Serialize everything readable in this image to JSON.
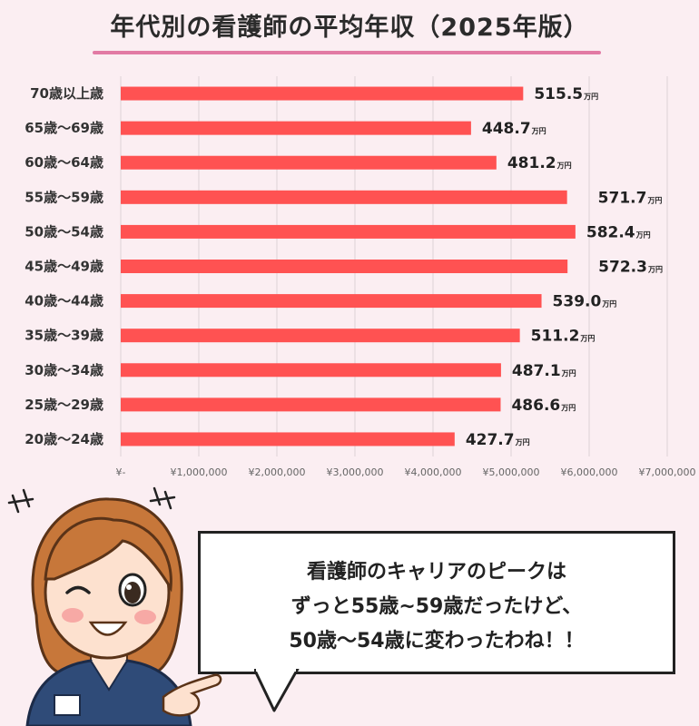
{
  "title": "年代別の看護師の平均年収（2025年版）",
  "chart_data": {
    "type": "bar",
    "orientation": "horizontal",
    "title": "年代別の看護師の平均年収（2025年版）",
    "categories": [
      "70歳以上歳",
      "65歳〜69歳",
      "60歳〜64歳",
      "55歳〜59歳",
      "50歳〜54歳",
      "45歳〜49歳",
      "40歳〜44歳",
      "35歳〜39歳",
      "30歳〜34歳",
      "25歳〜29歳",
      "20歳〜24歳"
    ],
    "values": [
      5155000,
      4487000,
      4812000,
      5717000,
      5824000,
      5723000,
      5390000,
      5112000,
      4871000,
      4866000,
      4277000
    ],
    "value_labels": [
      "515.5",
      "448.7",
      "481.2",
      "571.7",
      "582.4",
      "572.3",
      "539.0",
      "511.2",
      "487.1",
      "486.6",
      "427.7"
    ],
    "value_unit": "万円",
    "xlim": [
      0,
      7000000
    ],
    "x_ticks": [
      "¥-",
      "¥1,000,000",
      "¥2,000,000",
      "¥3,000,000",
      "¥4,000,000",
      "¥5,000,000",
      "¥6,000,000",
      "¥7,000,000"
    ],
    "bar_color": "#ff5252",
    "grid": true
  },
  "speech_bubble": {
    "lines": [
      "看護師のキャリアのピークは",
      "ずっと55歳~59歳だったけど、",
      "50歳〜54歳に変わったわね！！"
    ]
  },
  "colors": {
    "background": "#fbeef2",
    "accent": "#e27aa4"
  }
}
